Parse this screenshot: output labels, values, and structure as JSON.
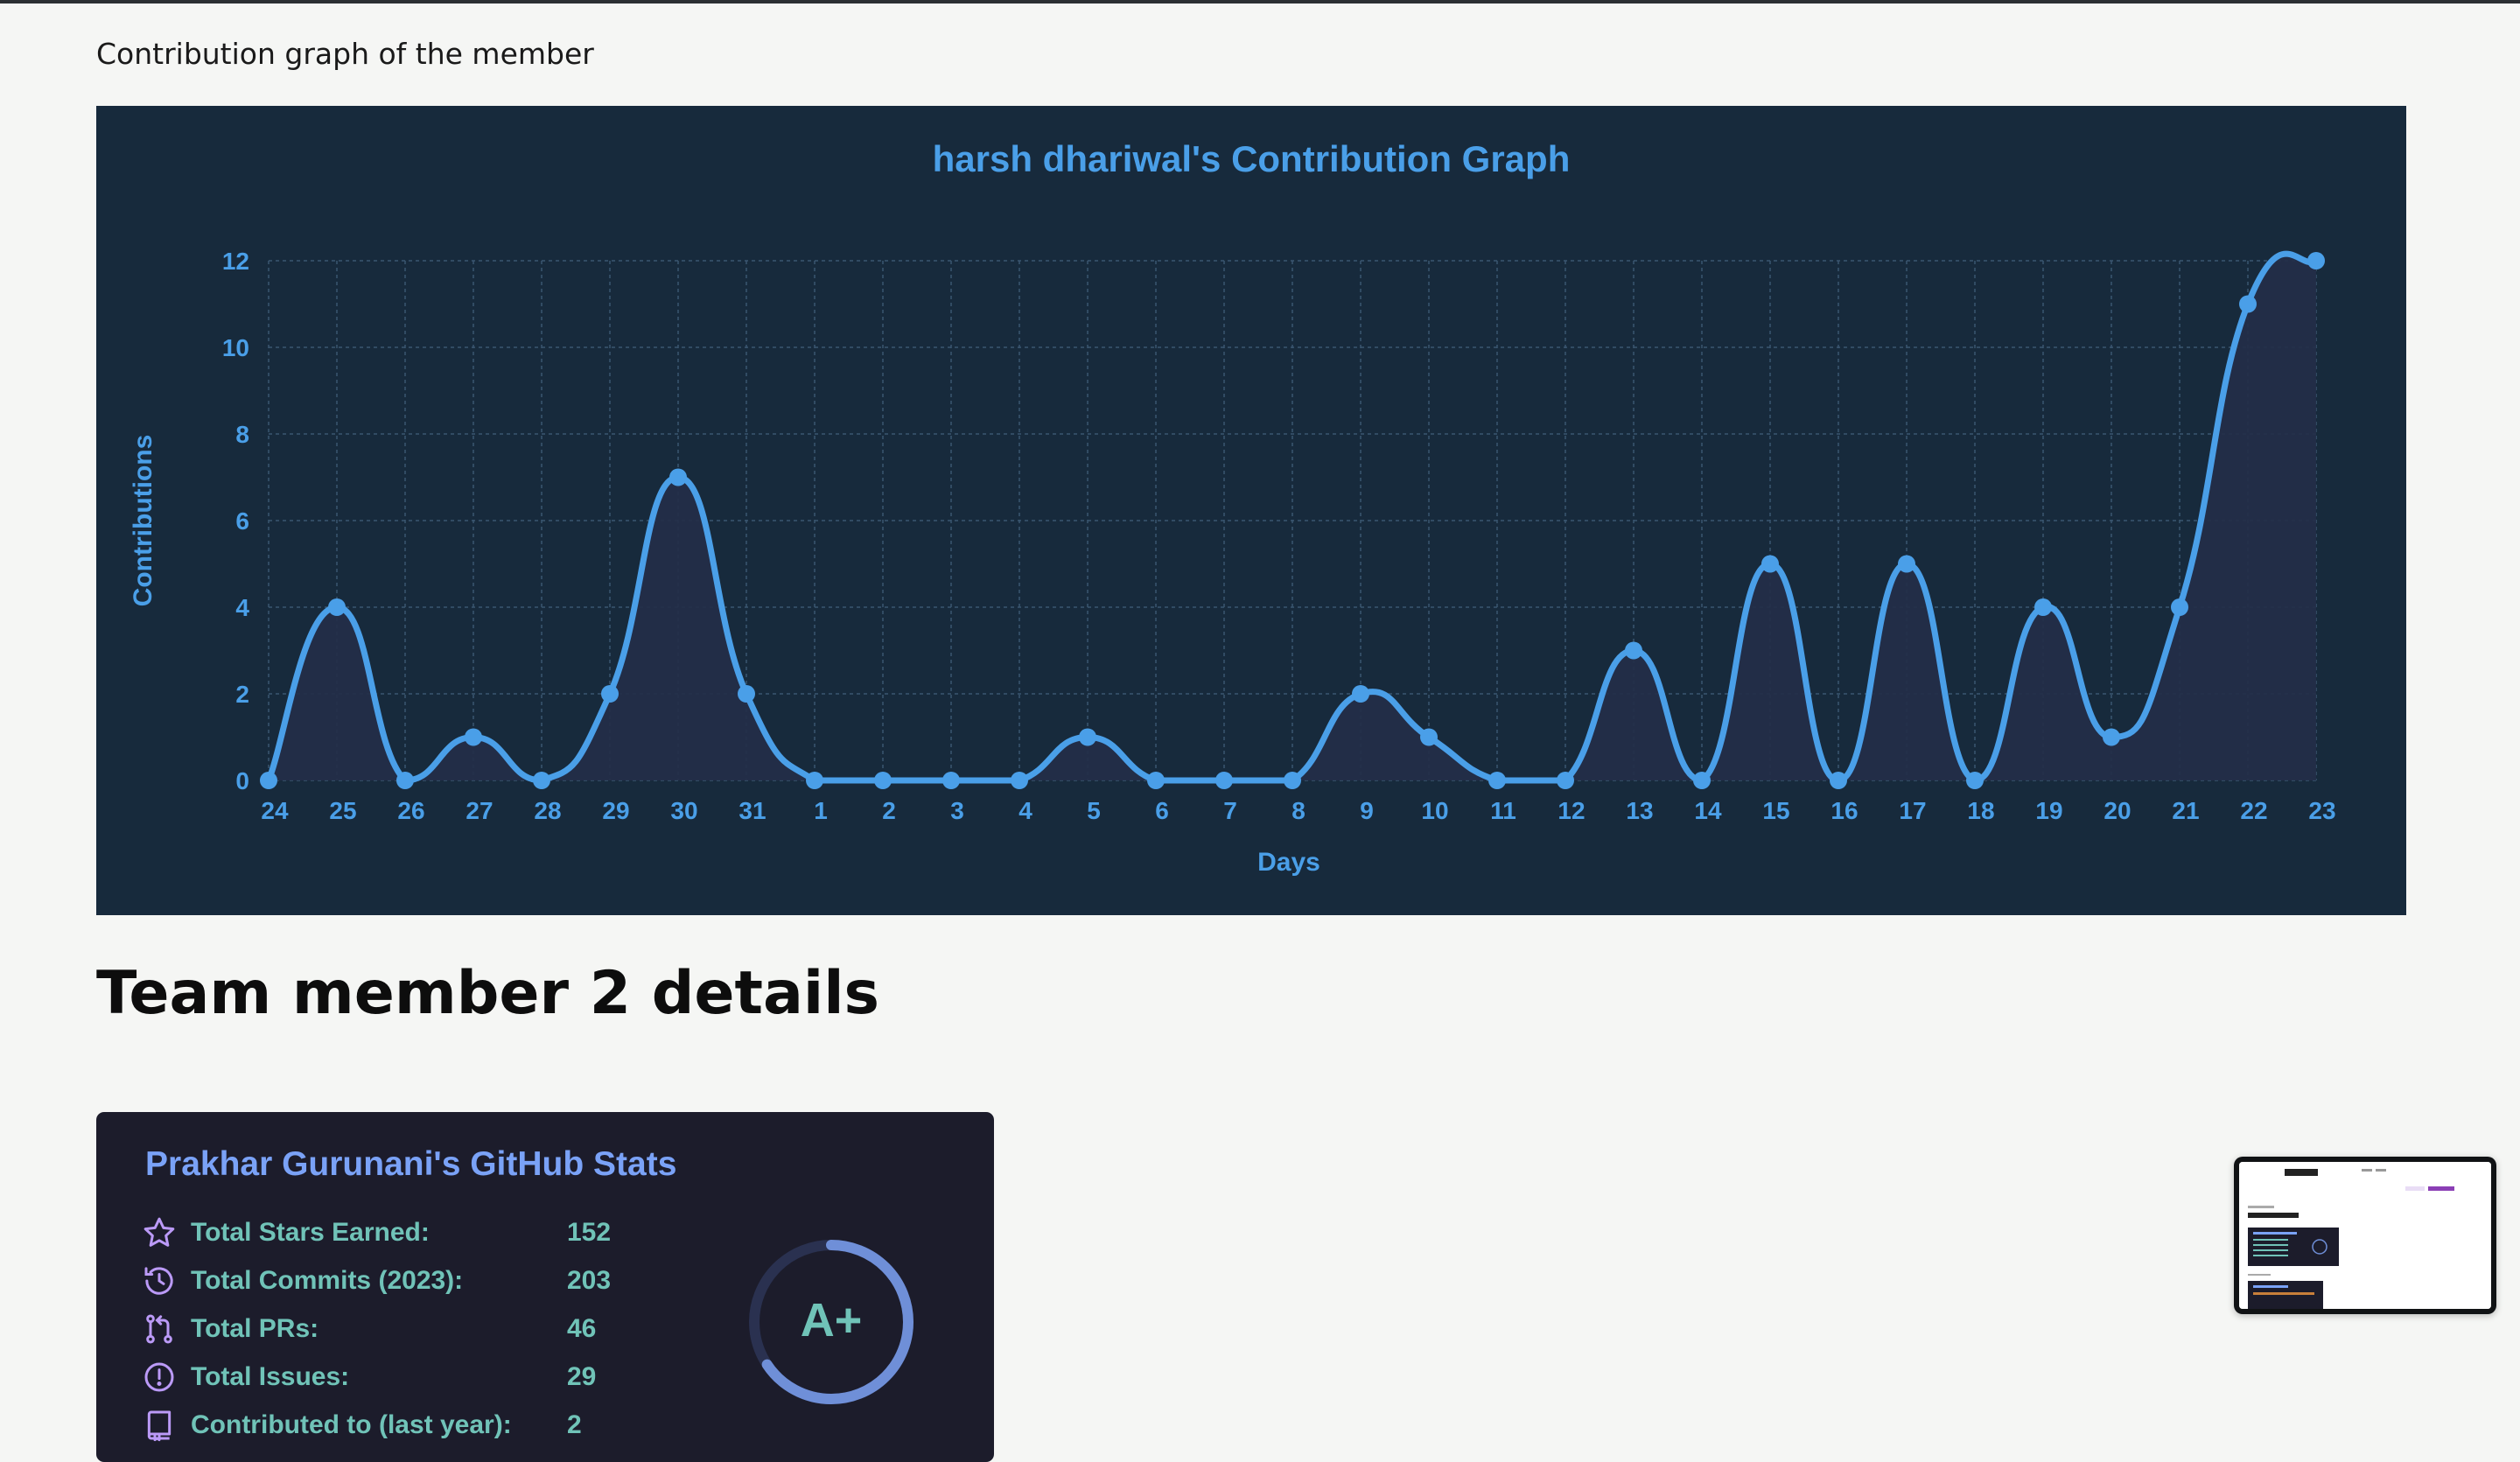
{
  "page": {
    "caption": "Contribution graph of the member",
    "section_title": "Team member 2 details"
  },
  "chart_data": {
    "type": "line",
    "title": "harsh dhariwal's Contribution Graph",
    "xlabel": "Days",
    "ylabel": "Contributions",
    "x": [
      "24",
      "25",
      "26",
      "27",
      "28",
      "29",
      "30",
      "31",
      "1",
      "2",
      "3",
      "4",
      "5",
      "6",
      "7",
      "8",
      "9",
      "10",
      "11",
      "12",
      "13",
      "14",
      "15",
      "16",
      "17",
      "18",
      "19",
      "20",
      "21",
      "22",
      "23"
    ],
    "values": [
      0,
      4,
      0,
      1,
      0,
      2,
      7,
      2,
      0,
      0,
      0,
      0,
      1,
      0,
      0,
      0,
      2,
      1,
      0,
      0,
      3,
      0,
      5,
      0,
      5,
      0,
      4,
      1,
      4,
      11,
      12
    ],
    "ylim": [
      0,
      12
    ],
    "yticks": [
      0,
      2,
      4,
      6,
      8,
      10,
      12
    ],
    "grid": true,
    "fill": true,
    "colors": {
      "line": "#4a9fe8",
      "text": "#4a9fe8",
      "background": "#172a3c",
      "fill": "#242d48"
    }
  },
  "github_stats": {
    "title": "Prakhar Gurunani's GitHub Stats",
    "grade": "A+",
    "rows": [
      {
        "icon": "star-icon",
        "label": "Total Stars Earned:",
        "value": "152"
      },
      {
        "icon": "history-icon",
        "label": "Total Commits (2023):",
        "value": "203"
      },
      {
        "icon": "pull-request-icon",
        "label": "Total PRs:",
        "value": "46"
      },
      {
        "icon": "issue-icon",
        "label": "Total Issues:",
        "value": "29"
      },
      {
        "icon": "repo-icon",
        "label": "Contributed to (last year):",
        "value": "2"
      }
    ],
    "colors": {
      "title": "#7aa2f7",
      "text": "#70c3b8",
      "icon": "#bb9af7",
      "bg": "#1c1c2b"
    }
  },
  "thumbnail": {
    "label": "screenshot-preview"
  }
}
